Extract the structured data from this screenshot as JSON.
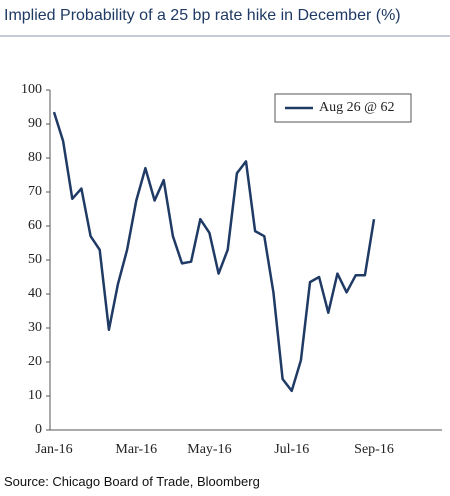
{
  "chart_data": {
    "type": "line",
    "title": "Implied Probability of a 25 bp rate hike in December (%)",
    "source": "Source: Chicago Board of Trade, Bloomberg",
    "categories": [
      "Jan-16",
      null,
      null,
      null,
      null,
      null,
      null,
      null,
      null,
      "Mar-16",
      null,
      null,
      null,
      null,
      null,
      null,
      null,
      "May-16",
      null,
      null,
      null,
      null,
      null,
      null,
      null,
      null,
      "Jul-16",
      null,
      null,
      null,
      null,
      null,
      null,
      null,
      null,
      "Sep-16"
    ],
    "series": [
      {
        "name": "Aug 26 @ 62",
        "color": "#1f3a64",
        "values": [
          93.5,
          85,
          68,
          71,
          57,
          53,
          29.5,
          43,
          53,
          67.5,
          77,
          67.5,
          73.5,
          57,
          49,
          49.5,
          62,
          58,
          46,
          53,
          75.5,
          79,
          58.5,
          57,
          40.5,
          15,
          11.5,
          20.5,
          43.5,
          45,
          34.5,
          46,
          40.5,
          45.5,
          45.5,
          62
        ]
      }
    ],
    "ylim": [
      0,
      100
    ],
    "yticks": [
      0,
      10,
      20,
      30,
      40,
      50,
      60,
      70,
      80,
      90,
      100
    ],
    "grid": false,
    "legend": "top-right"
  }
}
